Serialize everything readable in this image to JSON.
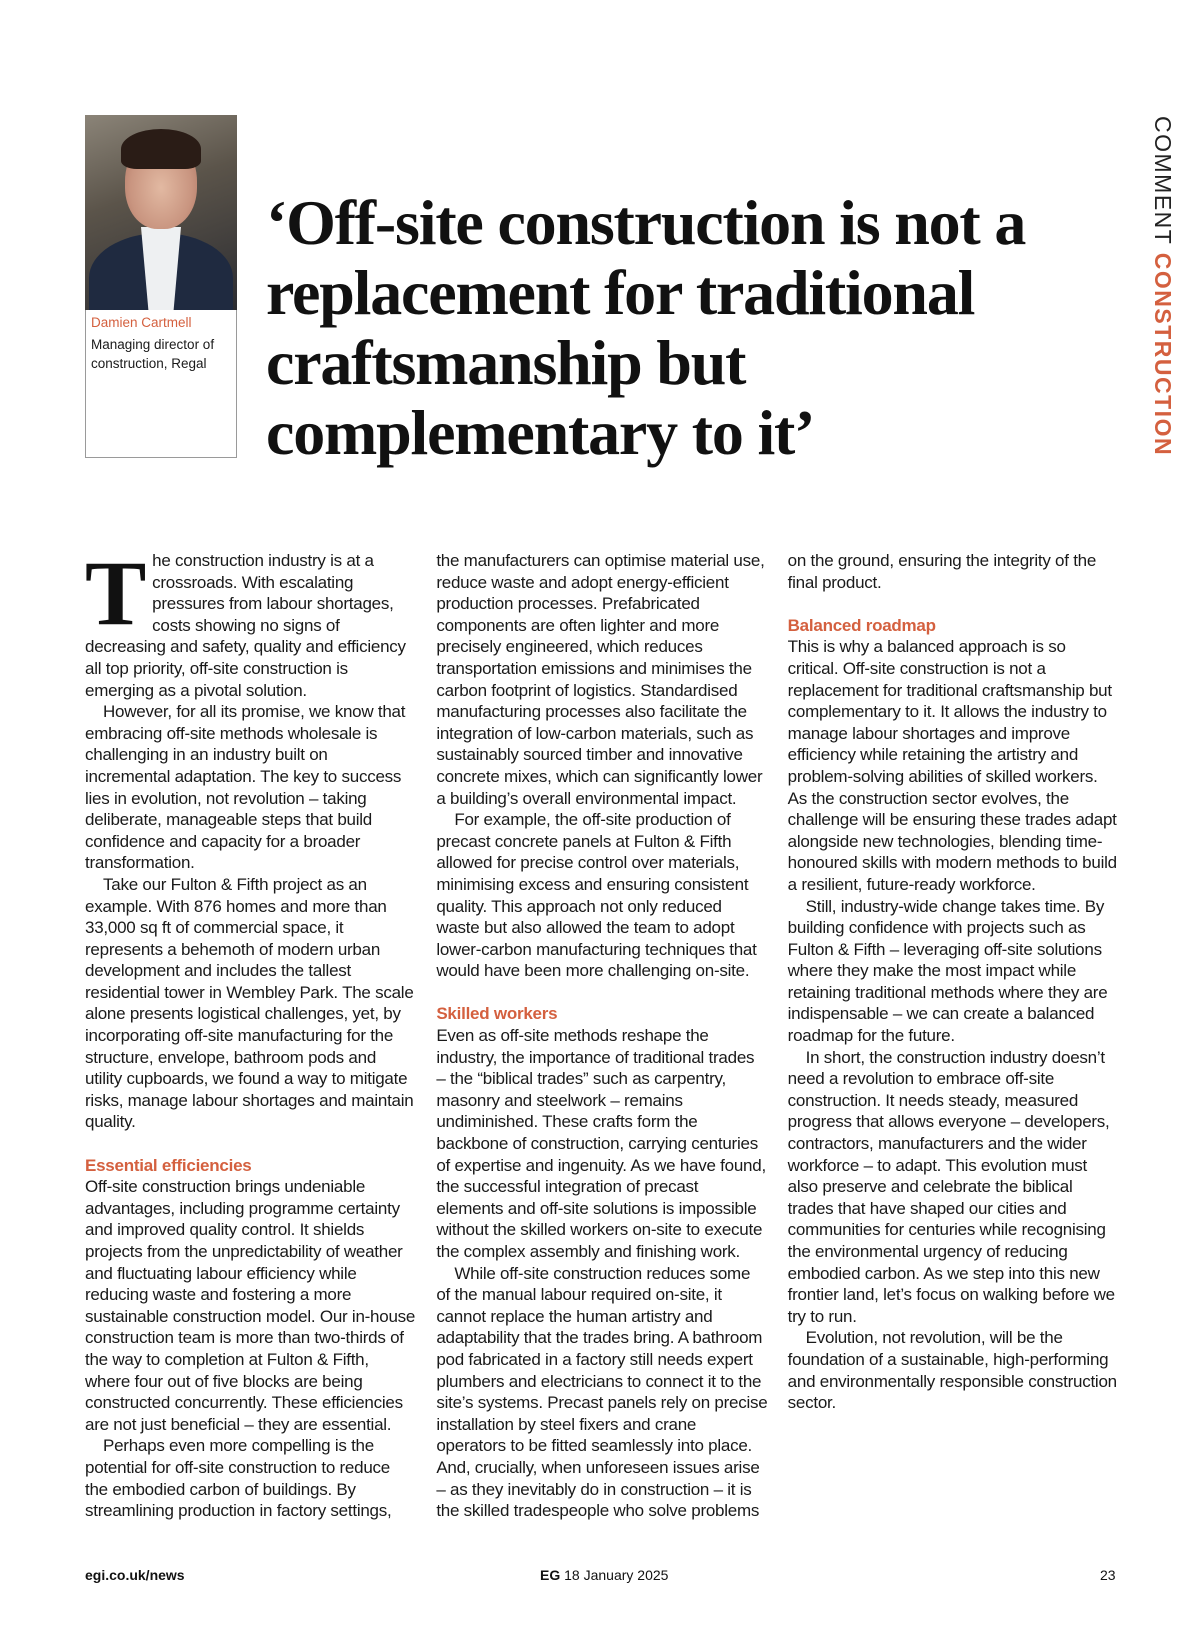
{
  "section": {
    "label": "COMMENT",
    "category": "CONSTRUCTION"
  },
  "author": {
    "name": "Damien Cartmell",
    "role": "Managing director of construction, Regal",
    "photo_icon": "author-portrait"
  },
  "headline": "‘Off-site construction is not a replacement for traditional craftsmanship but complementary to it’",
  "accent_color": "#d4603f",
  "article": {
    "drop_cap": "T",
    "blocks": [
      {
        "type": "p",
        "text": "he construction industry is at a crossroads. With escalating pressures from labour shortages, costs showing no signs of decreasing and safety, quality and efficiency all top priority, off-site construction is emerging as a pivotal solution."
      },
      {
        "type": "p",
        "text": "However, for all its promise, we know that embracing off-site methods wholesale is challenging in an industry built on incremental adaptation. The key to success lies in evolution, not revolution – taking deliberate, manageable steps that build confidence and capacity for a broader transformation."
      },
      {
        "type": "p",
        "text": "Take our Fulton & Fifth project as an example. With 876 homes and more than 33,000 sq ft of commercial space, it represents a behemoth of modern urban development and includes the tallest residential tower in Wembley Park. The scale alone presents logistical challenges, yet, by incorporating off-site manufacturing for the structure, envelope, bathroom pods and utility cupboards, we found a way to mitigate risks, manage labour shortages and maintain quality."
      },
      {
        "type": "h",
        "text": "Essential efficiencies"
      },
      {
        "type": "p",
        "text": "Off-site construction brings undeniable advantages, including programme certainty and improved quality control. It shields projects from the unpredictability of weather and fluctuating labour efficiency while reducing waste and fostering a more sustainable construction model. Our in-house construction team is more than two-thirds of the way to completion at Fulton & Fifth, where four out of five blocks are being constructed concurrently. These efficiencies are not just beneficial – they are essential."
      },
      {
        "type": "p",
        "text": "Perhaps even more compelling is the potential for off-site construction to reduce the embodied carbon of buildings. By streamlining production in factory settings, the manufacturers can optimise material use, reduce waste and adopt energy-efficient production processes. Prefabricated components are often lighter and more precisely engineered, which reduces transportation emissions and minimises the carbon footprint of logistics. Standardised manufacturing processes also facilitate the integration of low-carbon materials, such as sustainably sourced timber and innovative concrete mixes, which can significantly lower a building’s overall environmental impact."
      },
      {
        "type": "p",
        "text": "For example, the off-site production of precast concrete panels at Fulton & Fifth allowed for precise control over materials, minimising excess and ensuring consistent quality. This approach not only reduced waste but also allowed the team to adopt lower-carbon manufacturing techniques that would have been more challenging on-site."
      },
      {
        "type": "h",
        "text": "Skilled workers"
      },
      {
        "type": "p",
        "text": "Even as off-site methods reshape the industry, the importance of traditional trades – the “biblical trades” such as carpentry, masonry and steelwork – remains undiminished. These crafts form the backbone of construction, carrying centuries of expertise and ingenuity. As we have found, the successful integration of precast elements and off-site solutions is impossible without the skilled workers on-site to execute the complex assembly and finishing work."
      },
      {
        "type": "p",
        "text": "While off-site construction reduces some of the manual labour required on-site, it cannot replace the human artistry and adaptability that the trades bring. A bathroom pod fabricated in a factory still needs expert plumbers and electricians to connect it to the site’s systems. Precast panels rely on precise installation by steel fixers and crane operators to be fitted seamlessly into place. And, crucially, when unforeseen issues arise – as they inevitably do in construction – it is the skilled tradespeople who solve problems on the ground, ensuring the integrity of the final product."
      },
      {
        "type": "h",
        "text": "Balanced roadmap"
      },
      {
        "type": "p",
        "text": "This is why a balanced approach is so critical. Off-site construction is not a replacement for traditional craftsmanship but complementary to it. It allows the industry to manage labour shortages and improve efficiency while retaining the artistry and problem-solving abilities of skilled workers. As the construction sector evolves, the challenge will be ensuring these trades adapt alongside new technologies, blending time-honoured skills with modern methods to build a resilient, future-ready workforce."
      },
      {
        "type": "p",
        "text": "Still, industry-wide change takes time. By building confidence with projects such as Fulton & Fifth – leveraging off-site solutions where they make the most impact while retaining traditional methods where they are indispensable – we can create a balanced roadmap for the future."
      },
      {
        "type": "p",
        "text": "In short, the construction industry doesn’t need a revolution to embrace off-site construction. It needs steady, measured progress that allows everyone – developers, contractors, manufacturers and the wider workforce – to adapt. This evolution must also preserve and celebrate the biblical trades that have shaped our cities and communities for centuries while recognising the environmental urgency of reducing embodied carbon. As we step into this new frontier land, let’s focus on walking before we try to run."
      },
      {
        "type": "p",
        "text": "Evolution, not revolution, will be the foundation of a sustainable, high-performing and environmentally responsible construction sector."
      }
    ]
  },
  "footer": {
    "website": "egi.co.uk/news",
    "publication": "EG",
    "date": "18 January 2025",
    "page_number": "23"
  }
}
